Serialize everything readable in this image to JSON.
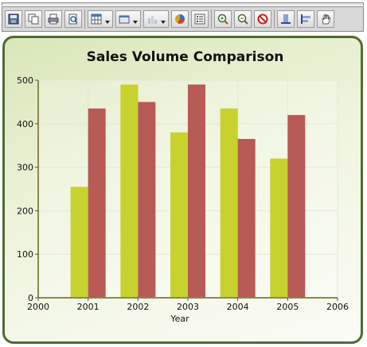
{
  "toolbar": {
    "buttons": [
      {
        "icon": "save-icon"
      },
      {
        "icon": "copy-icon"
      },
      {
        "icon": "print-icon"
      },
      {
        "icon": "print-preview-icon"
      },
      {
        "icon": "table-view-icon",
        "dropdown": true
      },
      {
        "icon": "palette-icon",
        "dropdown": true
      },
      {
        "icon": "chart-type-icon",
        "dropdown": true
      },
      {
        "icon": "pie-3d-icon"
      },
      {
        "icon": "legend-icon"
      },
      {
        "icon": "zoom-in-icon"
      },
      {
        "icon": "zoom-out-icon"
      },
      {
        "icon": "zoom-reset-icon"
      },
      {
        "icon": "axis-bottom-icon"
      },
      {
        "icon": "axis-left-icon"
      },
      {
        "icon": "pan-hand-icon"
      }
    ]
  },
  "chart_data": {
    "type": "bar",
    "title": "Sales Volume Comparison",
    "xlabel": "Year",
    "ylabel": "",
    "x_ticks": [
      "2000",
      "2001",
      "2002",
      "2003",
      "2004",
      "2005",
      "2006"
    ],
    "y_ticks": [
      "0",
      "100",
      "200",
      "300",
      "400",
      "500"
    ],
    "categories": [
      "2001",
      "2002",
      "2003",
      "2004",
      "2005"
    ],
    "xlim": [
      2000,
      2006
    ],
    "ylim": [
      0,
      500
    ],
    "grid": true,
    "legend": "none",
    "series": [
      {
        "color": "#c8d22e",
        "values": [
          255,
          490,
          380,
          435,
          320
        ]
      },
      {
        "color": "#b85a55",
        "values": [
          435,
          450,
          490,
          365,
          420
        ]
      }
    ]
  }
}
